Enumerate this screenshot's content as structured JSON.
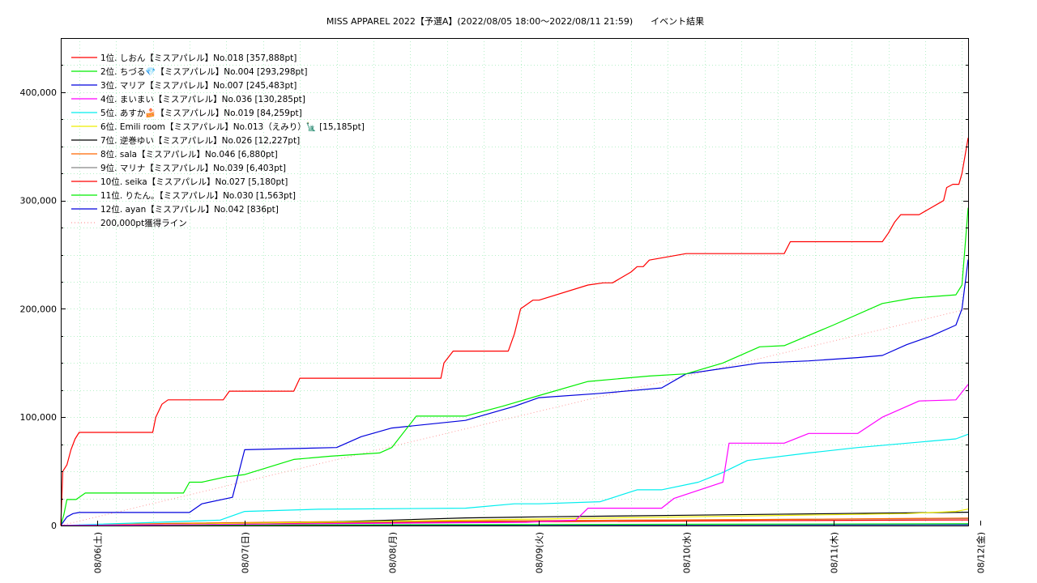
{
  "chart_data": {
    "type": "line",
    "title": "MISS APPAREL 2022【予選A】(2022/08/05 18:00～2022/08/11 21:59)　　イベント結果",
    "xlabel": "",
    "ylabel": "",
    "x_range": [
      "2022-08-05 18:00",
      "2022-08-11 22:00"
    ],
    "ylim": [
      0,
      450000
    ],
    "yticks": [
      0,
      100000,
      200000,
      300000,
      400000
    ],
    "ytick_labels": [
      "0",
      "100,000",
      "200,000",
      "300,000",
      "400,000"
    ],
    "xticks": [
      "2022-08-06 00:00",
      "2022-08-07 00:00",
      "2022-08-08 00:00",
      "2022-08-09 00:00",
      "2022-08-10 00:00",
      "2022-08-11 00:00",
      "2022-08-12 00:00"
    ],
    "xtick_labels": [
      "08/06(土)",
      "08/07(日)",
      "08/08(月)",
      "08/09(火)",
      "08/10(水)",
      "08/11(木)",
      "08/12(金)"
    ],
    "grid": true,
    "legend_position": "top-left",
    "series": [
      {
        "name": "1位. しおん【ミスアパレル】No.018 [357,888pt]",
        "color": "#ff0000",
        "x": [
          "2022-08-05 18:00",
          "2022-08-05 18:20",
          "2022-08-05 19:00",
          "2022-08-05 19:40",
          "2022-08-05 20:20",
          "2022-08-05 21:00",
          "2022-08-05 22:00",
          "2022-08-06 09:00",
          "2022-08-06 09:30",
          "2022-08-06 10:30",
          "2022-08-06 11:30",
          "2022-08-06 20:30",
          "2022-08-06 21:30",
          "2022-08-07 08:00",
          "2022-08-07 09:00",
          "2022-08-07 18:00",
          "2022-08-07 19:00",
          "2022-08-08 08:00",
          "2022-08-08 08:30",
          "2022-08-08 10:00",
          "2022-08-08 19:00",
          "2022-08-08 20:00",
          "2022-08-08 21:00",
          "2022-08-08 23:00",
          "2022-08-09 00:00",
          "2022-08-09 08:00",
          "2022-08-09 10:30",
          "2022-08-09 12:00",
          "2022-08-09 15:00",
          "2022-08-09 16:00",
          "2022-08-09 17:00",
          "2022-08-09 18:00",
          "2022-08-10 00:00",
          "2022-08-10 16:00",
          "2022-08-10 17:00",
          "2022-08-10 18:00",
          "2022-08-11 08:00",
          "2022-08-11 09:00",
          "2022-08-11 10:00",
          "2022-08-11 11:00",
          "2022-08-11 12:00",
          "2022-08-11 14:00",
          "2022-08-11 18:00",
          "2022-08-11 18:30",
          "2022-08-11 19:30",
          "2022-08-11 20:30",
          "2022-08-11 21:00",
          "2022-08-11 22:00"
        ],
        "y": [
          0,
          50000,
          56000,
          70000,
          80000,
          86000,
          86000,
          86000,
          100000,
          112000,
          116000,
          116000,
          124000,
          124000,
          136000,
          136000,
          136000,
          136000,
          150000,
          161000,
          161000,
          177000,
          200000,
          208000,
          208000,
          222000,
          224000,
          224000,
          234000,
          239000,
          239000,
          245000,
          251000,
          251000,
          262000,
          262000,
          262000,
          270000,
          280000,
          287000,
          287000,
          287000,
          300000,
          312000,
          315000,
          315000,
          325000,
          357888
        ]
      },
      {
        "name": "2位. ちづる💎【ミスアパレル】No.004 [293,298pt]",
        "color": "#00ee00",
        "x": [
          "2022-08-05 18:00",
          "2022-08-05 18:30",
          "2022-08-05 19:00",
          "2022-08-05 20:30",
          "2022-08-05 22:00",
          "2022-08-06 14:00",
          "2022-08-06 15:00",
          "2022-08-06 17:00",
          "2022-08-06 21:00",
          "2022-08-07 00:00",
          "2022-08-07 08:00",
          "2022-08-07 14:00",
          "2022-08-07 22:00",
          "2022-08-08 00:00",
          "2022-08-08 04:00",
          "2022-08-08 12:00",
          "2022-08-08 18:00",
          "2022-08-09 00:00",
          "2022-08-09 08:00",
          "2022-08-09 18:00",
          "2022-08-10 00:00",
          "2022-08-10 06:00",
          "2022-08-10 12:00",
          "2022-08-10 16:00",
          "2022-08-11 00:00",
          "2022-08-11 08:00",
          "2022-08-11 13:00",
          "2022-08-11 20:00",
          "2022-08-11 21:00",
          "2022-08-11 22:00"
        ],
        "y": [
          0,
          10000,
          24000,
          24000,
          30000,
          30000,
          40000,
          40000,
          45000,
          47000,
          61000,
          64000,
          67000,
          72000,
          101000,
          101000,
          110000,
          120000,
          133000,
          138000,
          140000,
          150000,
          165000,
          166000,
          185000,
          205000,
          210000,
          213000,
          222000,
          293298
        ]
      },
      {
        "name": "3位. マリア【ミスアパレル】No.007 [245,483pt]",
        "color": "#0000dd",
        "x": [
          "2022-08-05 18:00",
          "2022-08-05 19:00",
          "2022-08-05 20:00",
          "2022-08-05 21:00",
          "2022-08-06 15:00",
          "2022-08-06 17:00",
          "2022-08-06 22:00",
          "2022-08-07 00:00",
          "2022-08-07 15:00",
          "2022-08-07 19:00",
          "2022-08-08 00:00",
          "2022-08-08 12:00",
          "2022-08-08 20:00",
          "2022-08-09 00:00",
          "2022-08-09 10:00",
          "2022-08-09 20:00",
          "2022-08-10 00:00",
          "2022-08-10 12:00",
          "2022-08-10 20:00",
          "2022-08-11 04:00",
          "2022-08-11 08:00",
          "2022-08-11 12:00",
          "2022-08-11 16:00",
          "2022-08-11 20:00",
          "2022-08-11 21:00",
          "2022-08-11 22:00"
        ],
        "y": [
          0,
          8000,
          11000,
          12000,
          12000,
          20000,
          26000,
          70000,
          72000,
          82000,
          90000,
          97000,
          110000,
          118000,
          122000,
          127000,
          140000,
          150000,
          152000,
          155000,
          157000,
          167000,
          175000,
          185000,
          200000,
          245483
        ]
      },
      {
        "name": "4位. まいまい【ミスアパレル】No.036 [130,285pt]",
        "color": "#ff00ff",
        "x": [
          "2022-08-05 18:00",
          "2022-08-08 22:00",
          "2022-08-09 06:00",
          "2022-08-09 08:00",
          "2022-08-09 20:00",
          "2022-08-09 22:00",
          "2022-08-10 06:00",
          "2022-08-10 07:00",
          "2022-08-10 16:00",
          "2022-08-10 20:00",
          "2022-08-11 04:00",
          "2022-08-11 08:00",
          "2022-08-11 14:00",
          "2022-08-11 20:00",
          "2022-08-11 22:00"
        ],
        "y": [
          0,
          3000,
          5000,
          16000,
          16000,
          25000,
          40000,
          76000,
          76000,
          85000,
          85000,
          100000,
          115000,
          116000,
          130285
        ]
      },
      {
        "name": "5位. あすか🍰【ミスアパレル】No.019 [84,259pt]",
        "color": "#00eeee",
        "x": [
          "2022-08-05 18:00",
          "2022-08-06 10:00",
          "2022-08-06 20:00",
          "2022-08-07 00:00",
          "2022-08-07 12:00",
          "2022-08-08 12:00",
          "2022-08-08 20:00",
          "2022-08-09 00:00",
          "2022-08-09 10:00",
          "2022-08-09 16:00",
          "2022-08-09 20:00",
          "2022-08-10 02:00",
          "2022-08-10 06:00",
          "2022-08-10 10:00",
          "2022-08-10 20:00",
          "2022-08-11 04:00",
          "2022-08-11 20:00",
          "2022-08-11 22:00"
        ],
        "y": [
          0,
          3000,
          5000,
          13000,
          15000,
          16000,
          20000,
          20000,
          22000,
          33000,
          33000,
          40000,
          49000,
          60000,
          67000,
          72000,
          80000,
          84259
        ]
      },
      {
        "name": "6位. Emili room【ミスアパレル】No.013（えみり）🗽 [15,185pt]",
        "color": "#eeee00",
        "x": [
          "2022-08-05 18:00",
          "2022-08-06 10:00",
          "2022-08-07 12:00",
          "2022-08-08 12:00",
          "2022-08-09 12:00",
          "2022-08-10 12:00",
          "2022-08-11 12:00",
          "2022-08-11 20:00",
          "2022-08-11 22:00"
        ],
        "y": [
          0,
          1000,
          3000,
          5000,
          7000,
          9000,
          11000,
          13000,
          15185
        ]
      },
      {
        "name": "7位. 逆巻ゆい【ミスアパレル】No.026 [12,227pt]",
        "color": "#000000",
        "x": [
          "2022-08-05 18:00",
          "2022-08-06 10:00",
          "2022-08-07 12:00",
          "2022-08-08 00:00",
          "2022-08-08 12:00",
          "2022-08-09 00:00",
          "2022-08-10 00:00",
          "2022-08-11 00:00",
          "2022-08-11 22:00"
        ],
        "y": [
          0,
          1000,
          3000,
          5000,
          7000,
          8000,
          9500,
          11000,
          12227
        ]
      },
      {
        "name": "8位. sala【ミスアパレル】No.046 [6,880pt]",
        "color": "#ff6600",
        "x": [
          "2022-08-05 18:00",
          "2022-08-06 12:00",
          "2022-08-07 12:00",
          "2022-08-09 00:00",
          "2022-08-10 12:00",
          "2022-08-11 22:00"
        ],
        "y": [
          0,
          2000,
          3500,
          4500,
          5500,
          6880
        ]
      },
      {
        "name": "9位. マリナ【ミスアパレル】No.039 [6,403pt]",
        "color": "#888888",
        "x": [
          "2022-08-05 18:00",
          "2022-08-06 12:00",
          "2022-08-07 12:00",
          "2022-08-09 00:00",
          "2022-08-10 12:00",
          "2022-08-11 22:00"
        ],
        "y": [
          0,
          1500,
          3000,
          4500,
          5500,
          6403
        ]
      },
      {
        "name": "10位. seika【ミスアパレル】No.027 [5,180pt]",
        "color": "#ff0000",
        "x": [
          "2022-08-05 18:00",
          "2022-08-06 12:00",
          "2022-08-07 12:00",
          "2022-08-09 00:00",
          "2022-08-10 12:00",
          "2022-08-11 22:00"
        ],
        "y": [
          0,
          1500,
          2500,
          3500,
          4500,
          5180
        ]
      },
      {
        "name": "11位. りたん。【ミスアパレル】No.030 [1,563pt]",
        "color": "#00ee00",
        "x": [
          "2022-08-05 18:00",
          "2022-08-07 00:00",
          "2022-08-09 00:00",
          "2022-08-11 22:00"
        ],
        "y": [
          0,
          500,
          1000,
          1563
        ]
      },
      {
        "name": "12位. ayan【ミスアパレル】No.042 [836pt]",
        "color": "#0000dd",
        "x": [
          "2022-08-05 18:00",
          "2022-08-07 00:00",
          "2022-08-09 00:00",
          "2022-08-11 22:00"
        ],
        "y": [
          0,
          300,
          600,
          836
        ]
      },
      {
        "name": "200,000pt獲得ライン",
        "color": "#ff9999",
        "dotted": true,
        "x": [
          "2022-08-05 18:00",
          "2022-08-11 22:00"
        ],
        "y": [
          0,
          200000
        ]
      }
    ]
  }
}
